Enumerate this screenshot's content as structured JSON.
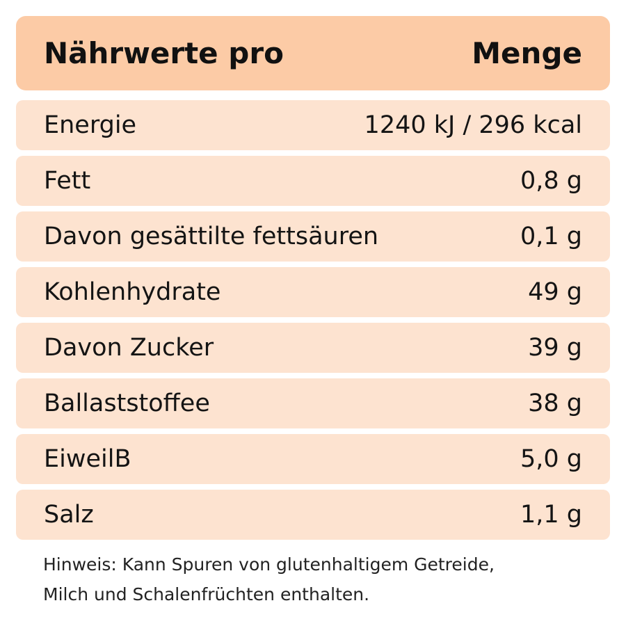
{
  "header": {
    "left": "Nährwerte pro",
    "right": "Menge"
  },
  "rows": [
    {
      "label": "Energie",
      "value": "1240 kJ / 296 kcal"
    },
    {
      "label": "Fett",
      "value": "0,8 g"
    },
    {
      "label": "Davon gesättilte fettsäuren",
      "value": "0,1 g"
    },
    {
      "label": "Kohlenhydrate",
      "value": "49 g"
    },
    {
      "label": "Davon Zucker",
      "value": "39 g"
    },
    {
      "label": "Ballaststoffee",
      "value": "38 g"
    },
    {
      "label": "EiweilB",
      "value": "5,0 g"
    },
    {
      "label": "Salz",
      "value": "1,1 g"
    }
  ],
  "note": {
    "line1": "Hinweis: Kann Spuren von glutenhaltigem Getreide,",
    "line2": "Milch und Schalenfrüchten enthalten."
  },
  "colors": {
    "header_bg": "#fccba6",
    "row_bg": "#fde3d0",
    "text": "#111111"
  }
}
